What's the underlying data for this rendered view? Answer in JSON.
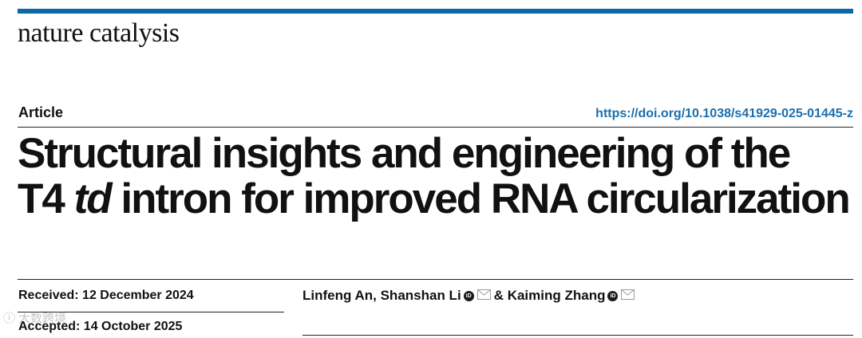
{
  "journal": {
    "name": "nature catalysis"
  },
  "article": {
    "type": "Article",
    "doi": "https://doi.org/10.1038/s41929-025-01445-z",
    "title_line1": "Structural insights and engineering of the",
    "title_line2_prefix": "T4",
    "title_line2_italic": "td",
    "title_line2_suffix": "intron for improved RNA circularization",
    "received": "Received: 12 December 2024",
    "accepted": "Accepted: 14 October 2025"
  },
  "authors": {
    "author1": "Linfeng An,",
    "author2": "Shanshan Li",
    "separator": "&",
    "author3": "Kaiming Zhang",
    "orcid_label": "iD"
  },
  "watermark": {
    "text": "ⓘ 大数跨境"
  },
  "colors": {
    "accent": "#0a6aa7",
    "link": "#1a6fae"
  }
}
